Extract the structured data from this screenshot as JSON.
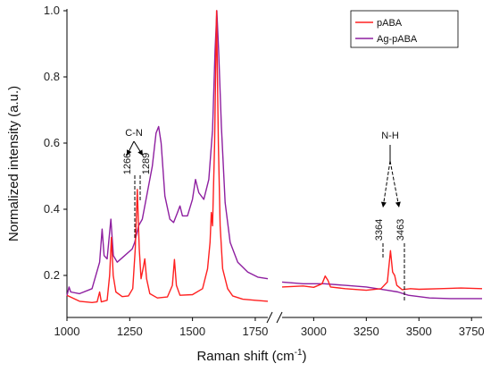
{
  "chart_data": {
    "type": "line",
    "xlabel": "Raman shift (cm",
    "xlabel_sup": "-1",
    "xlabel_close": ")",
    "ylabel": "Normalized intensity (a.u.)",
    "ylim": [
      0.1,
      1.0
    ],
    "y_ticks": [
      "0.2",
      "0.4",
      "0.6",
      "0.8",
      "1.0"
    ],
    "x_broken_axis": true,
    "panels": [
      {
        "xlim": [
          1000,
          1800
        ],
        "x_ticks": [
          "1000",
          "1250",
          "1500",
          "1750"
        ]
      },
      {
        "xlim": [
          2850,
          3800
        ],
        "x_ticks": [
          "3000",
          "3250",
          "3500",
          "3750"
        ]
      }
    ],
    "legend": {
      "placement": "top-right"
    },
    "series": [
      {
        "name": "pABA",
        "color": "#ff2020",
        "segments": [
          [
            [
              1000,
              0.14
            ],
            [
              1050,
              0.122
            ],
            [
              1100,
              0.118
            ],
            [
              1120,
              0.12
            ],
            [
              1130,
              0.15
            ],
            [
              1137,
              0.12
            ],
            [
              1160,
              0.125
            ],
            [
              1170,
              0.2
            ],
            [
              1177,
              0.315
            ],
            [
              1184,
              0.2
            ],
            [
              1195,
              0.15
            ],
            [
              1220,
              0.136
            ],
            [
              1245,
              0.138
            ],
            [
              1262,
              0.16
            ],
            [
              1272,
              0.28
            ],
            [
              1280,
              0.46
            ],
            [
              1288,
              0.28
            ],
            [
              1295,
              0.19
            ],
            [
              1303,
              0.22
            ],
            [
              1310,
              0.25
            ],
            [
              1317,
              0.19
            ],
            [
              1330,
              0.145
            ],
            [
              1360,
              0.132
            ],
            [
              1400,
              0.135
            ],
            [
              1420,
              0.17
            ],
            [
              1428,
              0.248
            ],
            [
              1436,
              0.17
            ],
            [
              1450,
              0.14
            ],
            [
              1500,
              0.142
            ],
            [
              1540,
              0.16
            ],
            [
              1560,
              0.22
            ],
            [
              1570,
              0.3
            ],
            [
              1575,
              0.39
            ],
            [
              1580,
              0.35
            ],
            [
              1588,
              0.6
            ],
            [
              1596,
              1.0
            ],
            [
              1603,
              0.6
            ],
            [
              1610,
              0.35
            ],
            [
              1620,
              0.22
            ],
            [
              1640,
              0.16
            ],
            [
              1660,
              0.138
            ],
            [
              1700,
              0.128
            ],
            [
              1750,
              0.125
            ],
            [
              1800,
              0.122
            ]
          ],
          [
            [
              2850,
              0.165
            ],
            [
              2950,
              0.168
            ],
            [
              3000,
              0.164
            ],
            [
              3040,
              0.175
            ],
            [
              3055,
              0.198
            ],
            [
              3068,
              0.185
            ],
            [
              3080,
              0.165
            ],
            [
              3150,
              0.16
            ],
            [
              3250,
              0.155
            ],
            [
              3320,
              0.16
            ],
            [
              3350,
              0.18
            ],
            [
              3365,
              0.275
            ],
            [
              3375,
              0.21
            ],
            [
              3385,
              0.2
            ],
            [
              3395,
              0.17
            ],
            [
              3420,
              0.157
            ],
            [
              3460,
              0.16
            ],
            [
              3500,
              0.158
            ],
            [
              3600,
              0.16
            ],
            [
              3700,
              0.162
            ],
            [
              3800,
              0.16
            ]
          ]
        ]
      },
      {
        "name": "Ag-pABA",
        "color": "#8e1fa0",
        "segments": [
          [
            [
              1000,
              0.138
            ],
            [
              1008,
              0.165
            ],
            [
              1015,
              0.15
            ],
            [
              1050,
              0.145
            ],
            [
              1100,
              0.16
            ],
            [
              1130,
              0.24
            ],
            [
              1140,
              0.34
            ],
            [
              1148,
              0.26
            ],
            [
              1160,
              0.25
            ],
            [
              1175,
              0.37
            ],
            [
              1185,
              0.26
            ],
            [
              1200,
              0.24
            ],
            [
              1230,
              0.26
            ],
            [
              1260,
              0.28
            ],
            [
              1270,
              0.3
            ],
            [
              1285,
              0.35
            ],
            [
              1300,
              0.37
            ],
            [
              1320,
              0.45
            ],
            [
              1340,
              0.53
            ],
            [
              1355,
              0.63
            ],
            [
              1365,
              0.65
            ],
            [
              1375,
              0.6
            ],
            [
              1390,
              0.44
            ],
            [
              1410,
              0.37
            ],
            [
              1425,
              0.36
            ],
            [
              1440,
              0.39
            ],
            [
              1450,
              0.41
            ],
            [
              1460,
              0.38
            ],
            [
              1480,
              0.38
            ],
            [
              1500,
              0.43
            ],
            [
              1512,
              0.49
            ],
            [
              1525,
              0.45
            ],
            [
              1545,
              0.43
            ],
            [
              1565,
              0.49
            ],
            [
              1580,
              0.64
            ],
            [
              1590,
              0.88
            ],
            [
              1597,
              1.0
            ],
            [
              1604,
              0.88
            ],
            [
              1615,
              0.65
            ],
            [
              1630,
              0.42
            ],
            [
              1650,
              0.3
            ],
            [
              1680,
              0.24
            ],
            [
              1720,
              0.21
            ],
            [
              1760,
              0.195
            ],
            [
              1800,
              0.19
            ]
          ],
          [
            [
              2850,
              0.18
            ],
            [
              2950,
              0.175
            ],
            [
              3050,
              0.175
            ],
            [
              3150,
              0.17
            ],
            [
              3250,
              0.165
            ],
            [
              3350,
              0.155
            ],
            [
              3400,
              0.15
            ],
            [
              3450,
              0.14
            ],
            [
              3550,
              0.132
            ],
            [
              3650,
              0.13
            ],
            [
              3800,
              0.13
            ]
          ]
        ]
      }
    ],
    "annotations": [
      {
        "label": "C-N",
        "peaks": [
          "1266",
          "1289"
        ]
      },
      {
        "label": "N-H",
        "peaks": [
          "3364",
          "3463"
        ]
      }
    ]
  }
}
